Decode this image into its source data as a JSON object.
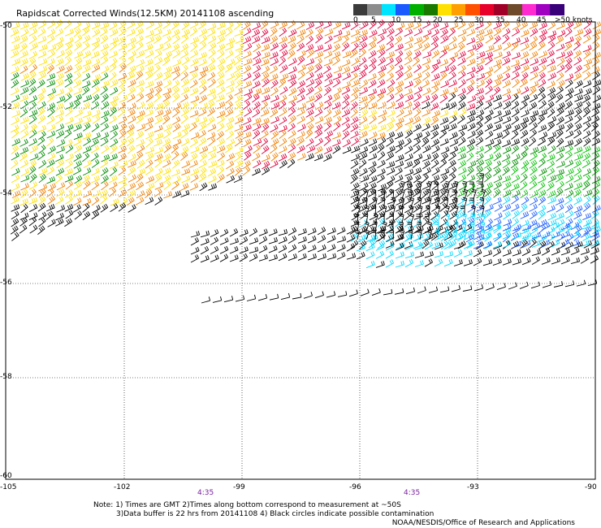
{
  "title": "Rapidscat Corrected Winds(12.5KM) 20141108 ascending",
  "legend": {
    "labels": [
      "0",
      "5",
      "10",
      "15",
      "20",
      "25",
      "30",
      "35",
      "40",
      "45",
      ">50 knots"
    ],
    "colors": [
      "#3b3b3b",
      "#8c8c8c",
      "#00e5ff",
      "#1a5aff",
      "#00b000",
      "#1a7a00",
      "#ffe000",
      "#ffa000",
      "#ff5000",
      "#e8002a",
      "#a00028",
      "#6e4a2a",
      "#ff2ad0",
      "#a000c0",
      "#3a007a"
    ]
  },
  "lat_labels": [
    "-50",
    "-52",
    "-54",
    "-56",
    "-58",
    "-60"
  ],
  "lon_labels": [
    "-105",
    "-102",
    "-99",
    "-96",
    "-93",
    "-90"
  ],
  "time_labels": [
    "4:35",
    "4:35"
  ],
  "notes": {
    "line1": "Note: 1) Times are GMT 2)Times along bottom correspond to measurement at ~50S",
    "line2": "3)Data buffer is 22 hrs from 20141108 4) Black circles indicate possible contamination"
  },
  "credit": "NOAA/NESDIS/Office of Research and Applications",
  "wind_colors": {
    "yellow": "#ffe000",
    "orange": "#f08000",
    "red": "#e0003c",
    "green": "#008c00",
    "green_bright": "#00c000",
    "blue": "#1a5aff",
    "cyan": "#00d8ff",
    "black": "#000000"
  }
}
